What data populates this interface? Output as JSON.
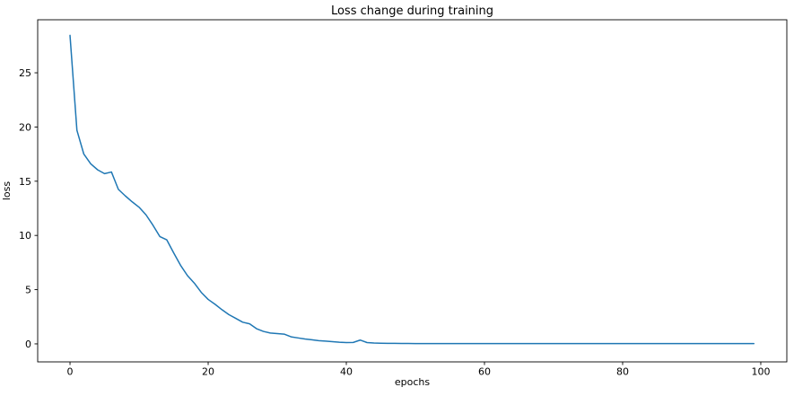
{
  "figure": {
    "title": "Loss change during training",
    "xlabel": "epochs",
    "ylabel": "loss"
  },
  "chart_data": {
    "type": "line",
    "title": "Loss change during training",
    "xlabel": "epochs",
    "ylabel": "loss",
    "grid": false,
    "legend": "none",
    "background_color": "#ffffff",
    "line_color": "#1f77b4",
    "line_width": 1.5,
    "spine_color": "#000000",
    "xlim": [
      -4.68,
      103.77
    ],
    "ylim": [
      -1.66,
      29.89
    ],
    "xticks": [
      0,
      20,
      40,
      60,
      80,
      100
    ],
    "yticks": [
      0,
      5,
      10,
      15,
      20,
      25
    ],
    "x": [
      0,
      1,
      2,
      3,
      4,
      5,
      6,
      7,
      8,
      9,
      10,
      11,
      12,
      13,
      14,
      15,
      16,
      17,
      18,
      19,
      20,
      21,
      22,
      23,
      24,
      25,
      26,
      27,
      28,
      29,
      30,
      31,
      32,
      33,
      34,
      35,
      36,
      37,
      38,
      39,
      40,
      41,
      42,
      43,
      44,
      45,
      46,
      47,
      48,
      49,
      50,
      51,
      52,
      53,
      54,
      55,
      56,
      57,
      58,
      59,
      60,
      61,
      62,
      63,
      64,
      65,
      66,
      67,
      68,
      69,
      70,
      71,
      72,
      73,
      74,
      75,
      76,
      77,
      78,
      79,
      80,
      81,
      82,
      83,
      84,
      85,
      86,
      87,
      88,
      89,
      90,
      91,
      92,
      93,
      94,
      95,
      96,
      97,
      98,
      99
    ],
    "y": [
      28.45,
      19.7,
      17.5,
      16.6,
      16.05,
      15.7,
      15.85,
      14.25,
      13.65,
      13.1,
      12.6,
      11.9,
      10.95,
      9.9,
      9.6,
      8.4,
      7.25,
      6.3,
      5.6,
      4.75,
      4.1,
      3.65,
      3.15,
      2.7,
      2.35,
      2.0,
      1.85,
      1.4,
      1.15,
      1.0,
      0.95,
      0.9,
      0.65,
      0.55,
      0.45,
      0.38,
      0.3,
      0.25,
      0.2,
      0.15,
      0.12,
      0.13,
      0.35,
      0.12,
      0.08,
      0.06,
      0.05,
      0.05,
      0.04,
      0.04,
      0.03,
      0.03,
      0.03,
      0.03,
      0.03,
      0.03,
      0.03,
      0.03,
      0.03,
      0.03,
      0.03,
      0.03,
      0.03,
      0.03,
      0.03,
      0.03,
      0.03,
      0.03,
      0.03,
      0.03,
      0.03,
      0.03,
      0.03,
      0.03,
      0.03,
      0.03,
      0.03,
      0.03,
      0.03,
      0.03,
      0.03,
      0.03,
      0.03,
      0.03,
      0.03,
      0.03,
      0.03,
      0.03,
      0.03,
      0.03,
      0.03,
      0.03,
      0.03,
      0.03,
      0.03,
      0.03,
      0.03,
      0.03,
      0.03,
      0.03
    ]
  }
}
